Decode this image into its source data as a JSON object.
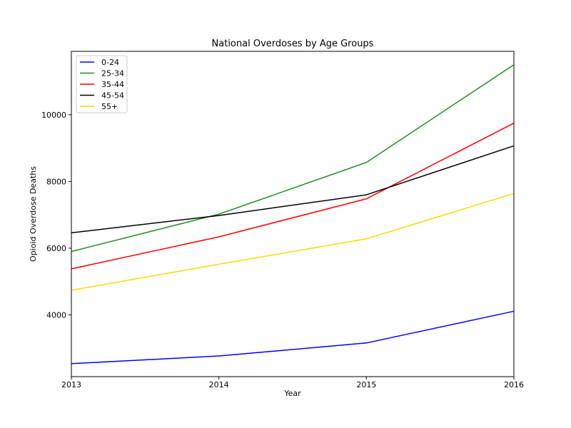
{
  "chart_data": {
    "type": "line",
    "title": "National Overdoses by Age Groups",
    "xlabel": "Year",
    "ylabel": "Opioid Overdose Deaths",
    "x": [
      2013,
      2014,
      2015,
      2016
    ],
    "x_ticks": [
      "2013",
      "2014",
      "2015",
      "2016"
    ],
    "xlim": [
      2013,
      2016
    ],
    "ylim": [
      2150,
      11900
    ],
    "y_ticks": [
      4000,
      6000,
      8000,
      10000
    ],
    "grid": false,
    "legend_position": "top-left",
    "series": [
      {
        "name": "0-24",
        "color": "#0000ff",
        "values": [
          2540,
          2770,
          3160,
          4110
        ]
      },
      {
        "name": "25-34",
        "color": "#228b22",
        "values": [
          5900,
          7020,
          8570,
          11500
        ]
      },
      {
        "name": "35-44",
        "color": "#ff0000",
        "values": [
          5380,
          6340,
          7480,
          9750
        ]
      },
      {
        "name": "45-54",
        "color": "#000000",
        "values": [
          6460,
          6980,
          7600,
          9070
        ]
      },
      {
        "name": "55+",
        "color": "#ffd700",
        "values": [
          4740,
          5520,
          6280,
          7640
        ]
      }
    ]
  }
}
